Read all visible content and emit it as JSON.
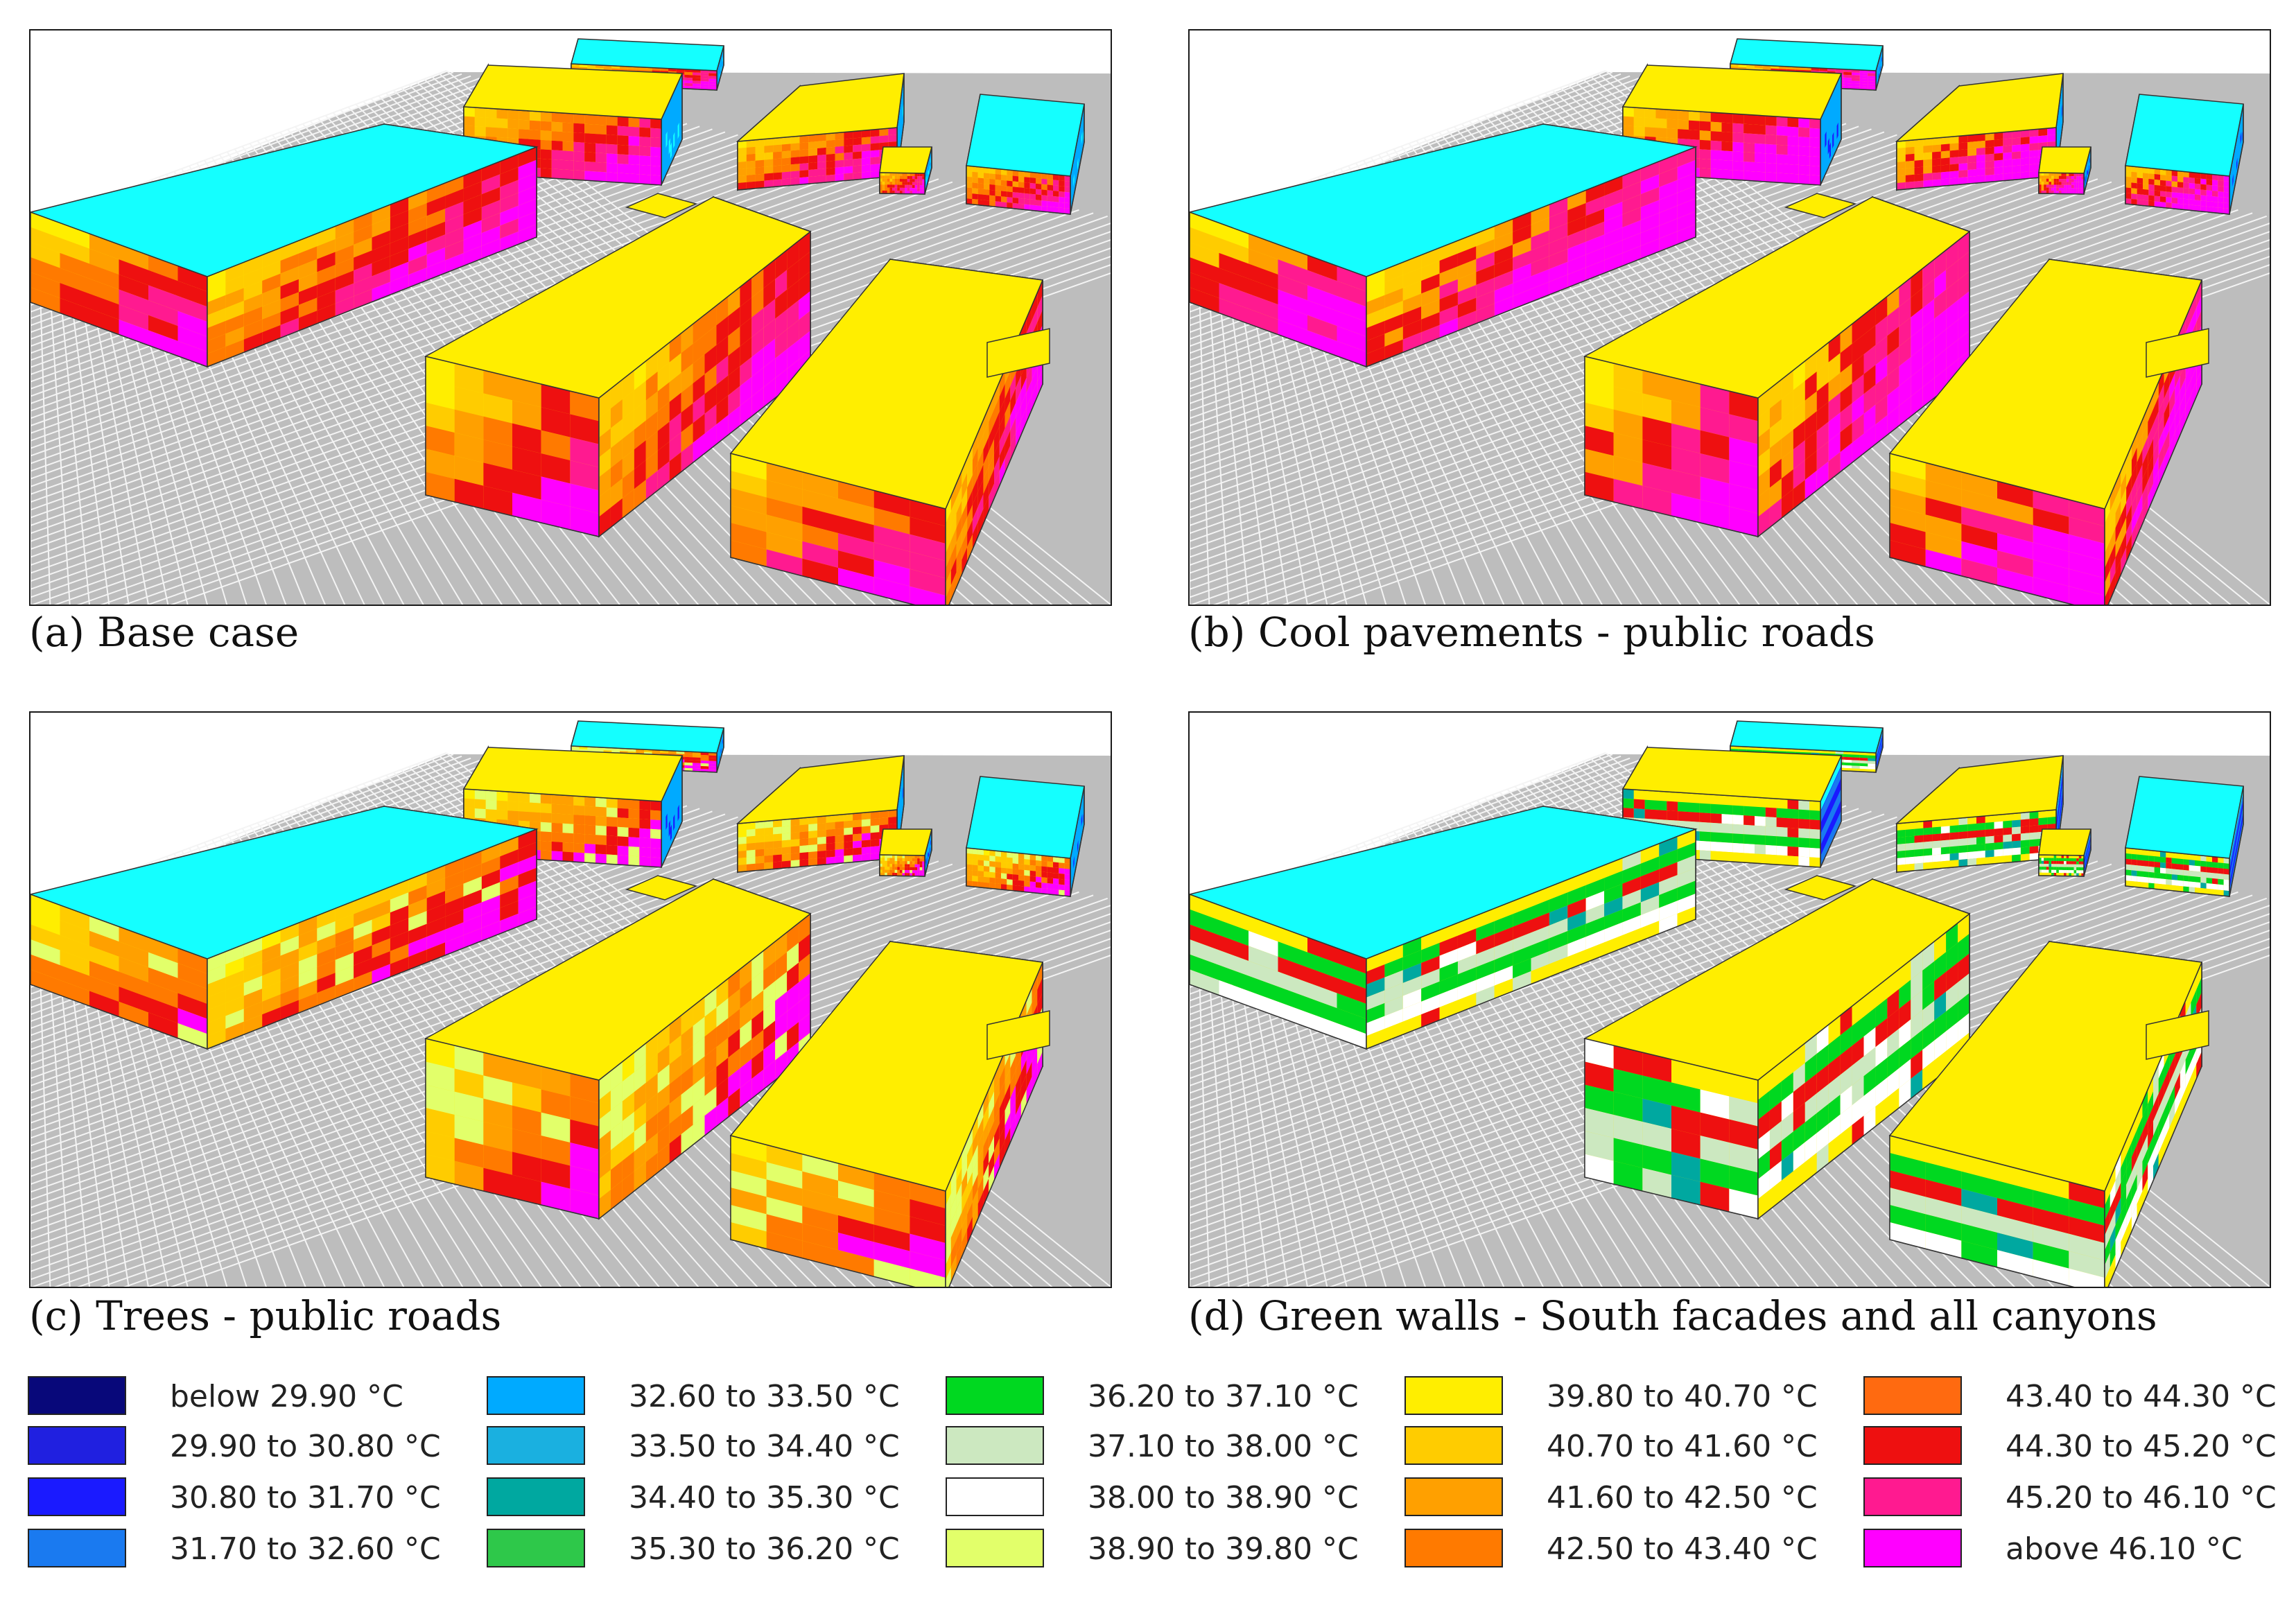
{
  "panels": [
    {
      "caption": "(a) Base case",
      "scenario": "base"
    },
    {
      "caption": "(b) Cool pavements - public roads",
      "scenario": "cool"
    },
    {
      "caption": "(c) Trees - public roads",
      "scenario": "trees"
    },
    {
      "caption": "(d) Green walls - South facades and all canyons",
      "scenario": "green"
    }
  ],
  "legend": [
    {
      "label": "below 29.90 °C",
      "color": "#08087a"
    },
    {
      "label": "29.90 to 30.80 °C",
      "color": "#2020e0"
    },
    {
      "label": "30.80 to 31.70 °C",
      "color": "#1a1aff"
    },
    {
      "label": "31.70 to 32.60 °C",
      "color": "#1a7af0"
    },
    {
      "label": "32.60 to 33.50 °C",
      "color": "#00aaff"
    },
    {
      "label": "33.50 to 34.40 °C",
      "color": "#1ab0e0"
    },
    {
      "label": "34.40 to 35.30 °C",
      "color": "#00a8a0"
    },
    {
      "label": "35.30 to 36.20 °C",
      "color": "#2ec84a"
    },
    {
      "label": "36.20 to 37.10 °C",
      "color": "#00d820"
    },
    {
      "label": "37.10 to 38.00 °C",
      "color": "#cce8c0"
    },
    {
      "label": "38.00 to 38.90 °C",
      "color": "#ffffff"
    },
    {
      "label": "38.90 to 39.80 °C",
      "color": "#e2ff6a"
    },
    {
      "label": "39.80 to 40.70 °C",
      "color": "#ffee00"
    },
    {
      "label": "40.70 to 41.60 °C",
      "color": "#ffcc00"
    },
    {
      "label": "41.60 to 42.50 °C",
      "color": "#ffa000"
    },
    {
      "label": "42.50 to 43.40 °C",
      "color": "#ff7a00"
    },
    {
      "label": "43.40 to 44.30 °C",
      "color": "#ff6a10"
    },
    {
      "label": "44.30 to 45.20 °C",
      "color": "#ee1010"
    },
    {
      "label": "45.20 to 46.10 °C",
      "color": "#ff1a90"
    },
    {
      "label": "above 46.10 °C",
      "color": "#ff00ff"
    }
  ]
}
